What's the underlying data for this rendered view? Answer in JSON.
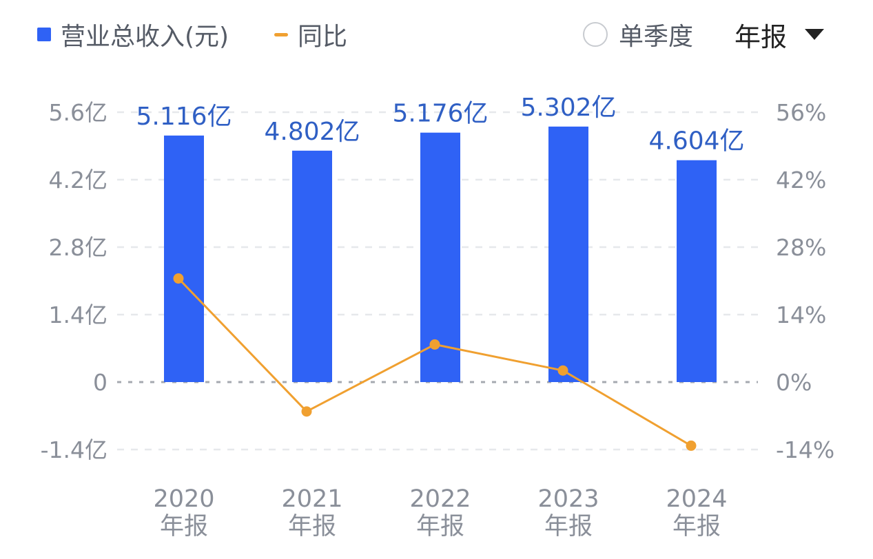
{
  "legend": {
    "bar_label": "营业总收入(元)",
    "line_label": "同比"
  },
  "controls": {
    "quarter_label": "单季度",
    "period_label": "年报"
  },
  "colors": {
    "bar": "#2f62f5",
    "line": "#f0a030",
    "bar_label": "#2f5fc4",
    "axis_label": "#8a8f99",
    "grid": "#e6e8eb",
    "zero_line": "#a5a9b0"
  },
  "chart_data": {
    "type": "bar",
    "categories": [
      "2020 年报",
      "2021 年报",
      "2022 年报",
      "2023 年报",
      "2024 年报"
    ],
    "category_lines": [
      [
        "2020",
        "年报"
      ],
      [
        "2021",
        "年报"
      ],
      [
        "2022",
        "年报"
      ],
      [
        "2023",
        "年报"
      ],
      [
        "2024",
        "年报"
      ]
    ],
    "series": [
      {
        "name": "营业总收入(元)",
        "type": "bar",
        "axis": "left",
        "values": [
          5.116,
          4.802,
          5.176,
          5.302,
          4.604
        ],
        "labels": [
          "5.116亿",
          "4.802亿",
          "5.176亿",
          "5.302亿",
          "4.604亿"
        ]
      },
      {
        "name": "同比",
        "type": "line",
        "axis": "right",
        "values": [
          21.5,
          -6.1,
          7.8,
          2.4,
          -13.2
        ]
      }
    ],
    "y_left": {
      "range": [
        -1.4,
        5.6
      ],
      "ticks": [
        5.6,
        4.2,
        2.8,
        1.4,
        0,
        -1.4
      ],
      "tick_labels": [
        "5.6亿",
        "4.2亿",
        "2.8亿",
        "1.4亿",
        "0",
        "-1.4亿"
      ]
    },
    "y_right": {
      "range": [
        -14,
        56
      ],
      "ticks": [
        56,
        42,
        28,
        14,
        0,
        -14
      ],
      "tick_labels": [
        "56%",
        "42%",
        "28%",
        "14%",
        "0%",
        "-14%"
      ]
    },
    "grid": true,
    "legend_position": "top-left"
  }
}
